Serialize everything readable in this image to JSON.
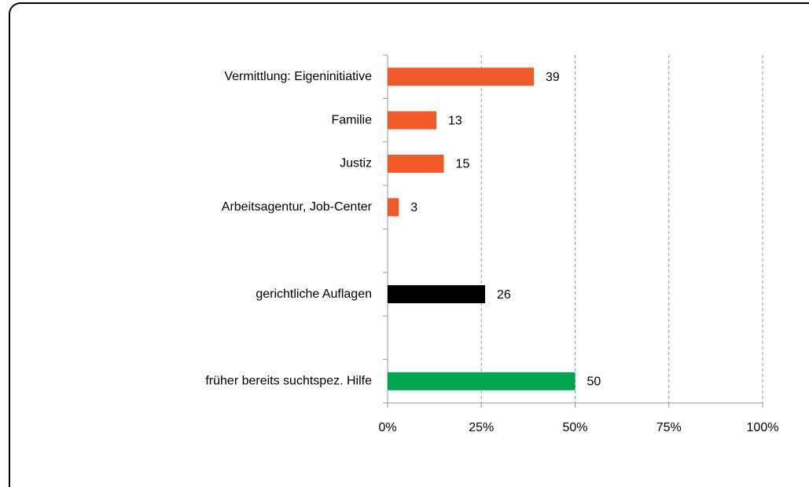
{
  "chart_data": {
    "type": "hbar",
    "categories": [
      "Vermittlung: Eigeninitiative",
      "Familie",
      "Justiz",
      "Arbeitsagentur, Job-Center",
      null,
      "gerichtliche Auflagen",
      null,
      "früher bereits suchtspez. Hilfe"
    ],
    "values": [
      39,
      13,
      15,
      3,
      null,
      26,
      null,
      50
    ],
    "colors": [
      "#f15a29",
      "#f15a29",
      "#f15a29",
      "#f15a29",
      null,
      "#000000",
      null,
      "#00a650"
    ],
    "xlim": [
      0,
      100
    ],
    "xticks": [
      {
        "value": 0,
        "label": "0%"
      },
      {
        "value": 25,
        "label": "25%"
      },
      {
        "value": 50,
        "label": "50%"
      },
      {
        "value": 75,
        "label": "75%"
      },
      {
        "value": 100,
        "label": "100%"
      }
    ],
    "grid": true
  }
}
